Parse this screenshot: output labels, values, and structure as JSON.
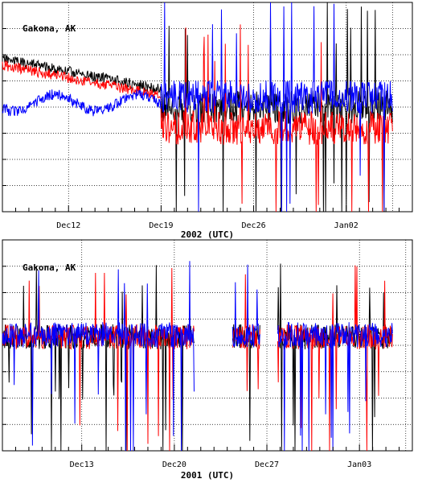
{
  "chart_data": [
    {
      "type": "line",
      "station_label": "Gakona, AK",
      "xlabel": "2002 (UTC)",
      "ylabel": "",
      "x_start_day": 7,
      "x_end_day": 38,
      "xticks": [
        {
          "day": 12,
          "label": "Dec12"
        },
        {
          "day": 19,
          "label": "Dec19"
        },
        {
          "day": 26,
          "label": "Dec26"
        },
        {
          "day": 33,
          "label": "Jan02"
        }
      ],
      "grid": true,
      "series_colors": [
        "#000000",
        "#ff0000",
        "#0000ff"
      ],
      "gaps": [],
      "seed": 11
    },
    {
      "type": "line",
      "station_label": "Gakona, AK",
      "xlabel": "2001 (UTC)",
      "ylabel": "",
      "x_start_day": 7,
      "x_end_day": 38,
      "xticks": [
        {
          "day": 13,
          "label": "Dec13"
        },
        {
          "day": 20,
          "label": "Dec20"
        },
        {
          "day": 27,
          "label": "Dec27"
        },
        {
          "day": 34,
          "label": "Jan03"
        }
      ],
      "grid": true,
      "series_colors": [
        "#000000",
        "#ff0000",
        "#0000ff"
      ],
      "gaps": [
        [
          21.5,
          24.4
        ],
        [
          26.5,
          27.8
        ]
      ],
      "seed": 29
    }
  ]
}
